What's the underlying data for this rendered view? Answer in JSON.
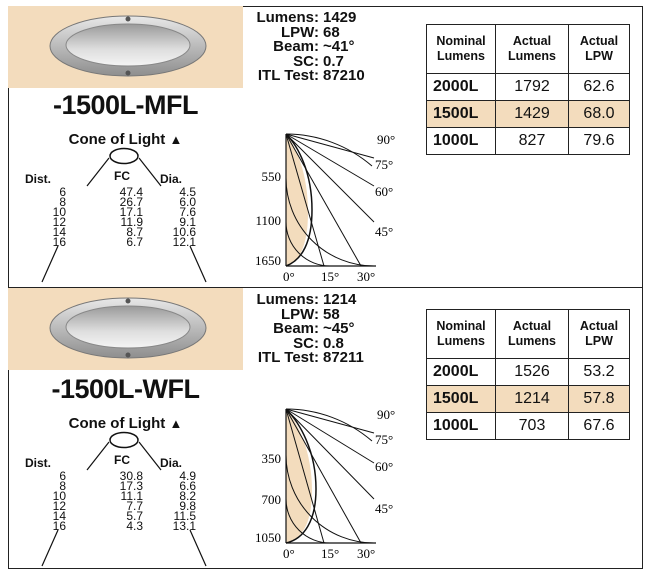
{
  "colors": {
    "highlight": "#f3dcbd",
    "line": "#222222"
  },
  "products": [
    {
      "model": "-1500L-MFL",
      "photo_icon": "round-recessed-fixture",
      "cone": {
        "title": "Cone of Light",
        "arrow": "▲",
        "headers": {
          "dist": "Dist.",
          "fc": "FC",
          "dia": "Dia."
        },
        "dist": [
          "6",
          "8",
          "10",
          "12",
          "14",
          "16"
        ],
        "fc": [
          "47.4",
          "26.7",
          "17.1",
          "11.9",
          "8.7",
          "6.7"
        ],
        "dia": [
          "4.5",
          "6.0",
          "7.6",
          "9.1",
          "10.6",
          "12.1"
        ]
      },
      "specs": [
        {
          "label": "Lumens:",
          "value": "1429"
        },
        {
          "label": "LPW:",
          "value": "68"
        },
        {
          "label": "Beam:",
          "value": "~41°"
        },
        {
          "label": "SC:",
          "value": "0.7"
        },
        {
          "label": "ITL Test:",
          "value": "87210"
        }
      ],
      "polar": {
        "radial_labels": [
          "550",
          "1100",
          "1650"
        ],
        "angle_labels": [
          "90°",
          "75°",
          "60°",
          "45°"
        ],
        "bottom_labels": [
          "0°",
          "15°",
          "30°"
        ]
      },
      "table": {
        "headers": [
          "Nominal Lumens",
          "Actual Lumens",
          "Actual LPW"
        ],
        "rows": [
          {
            "nominal": "2000L",
            "actual": "1792",
            "lpw": "62.6",
            "highlight": false
          },
          {
            "nominal": "1500L",
            "actual": "1429",
            "lpw": "68.0",
            "highlight": true
          },
          {
            "nominal": "1000L",
            "actual": "827",
            "lpw": "79.6",
            "highlight": false
          }
        ]
      }
    },
    {
      "model": "-1500L-WFL",
      "photo_icon": "round-recessed-fixture",
      "cone": {
        "title": "Cone of Light",
        "arrow": "▲",
        "headers": {
          "dist": "Dist.",
          "fc": "FC",
          "dia": "Dia."
        },
        "dist": [
          "6",
          "8",
          "10",
          "12",
          "14",
          "16"
        ],
        "fc": [
          "30.8",
          "17.3",
          "11.1",
          "7.7",
          "5.7",
          "4.3"
        ],
        "dia": [
          "4.9",
          "6.6",
          "8.2",
          "9.8",
          "11.5",
          "13.1"
        ]
      },
      "specs": [
        {
          "label": "Lumens:",
          "value": "1214"
        },
        {
          "label": "LPW:",
          "value": "58"
        },
        {
          "label": "Beam:",
          "value": "~45°"
        },
        {
          "label": "SC:",
          "value": "0.8"
        },
        {
          "label": "ITL Test:",
          "value": "87211"
        }
      ],
      "polar": {
        "radial_labels": [
          "350",
          "700",
          "1050"
        ],
        "angle_labels": [
          "90°",
          "75°",
          "60°",
          "45°"
        ],
        "bottom_labels": [
          "0°",
          "15°",
          "30°"
        ]
      },
      "table": {
        "headers": [
          "Nominal Lumens",
          "Actual Lumens",
          "Actual LPW"
        ],
        "rows": [
          {
            "nominal": "2000L",
            "actual": "1526",
            "lpw": "53.2",
            "highlight": false
          },
          {
            "nominal": "1500L",
            "actual": "1214",
            "lpw": "57.8",
            "highlight": true
          },
          {
            "nominal": "1000L",
            "actual": "703",
            "lpw": "67.6",
            "highlight": false
          }
        ]
      }
    }
  ]
}
